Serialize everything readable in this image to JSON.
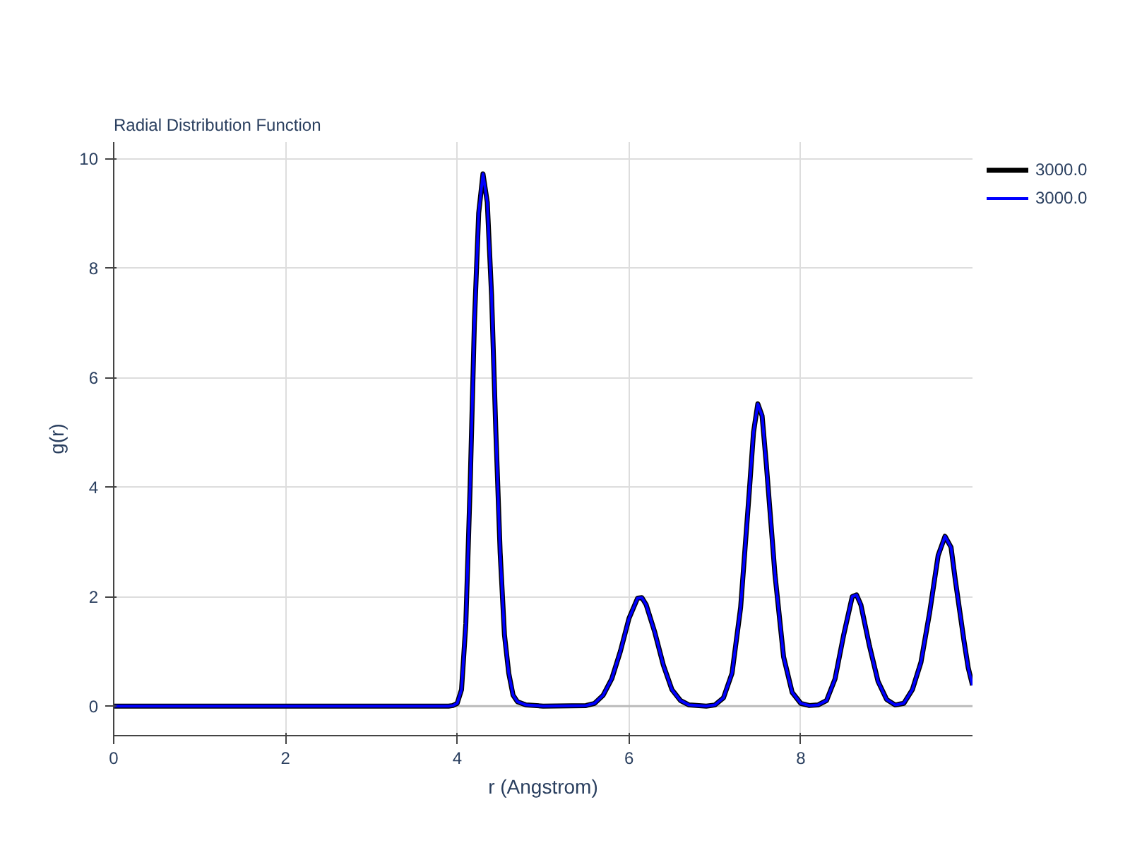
{
  "chart_data": {
    "type": "line",
    "title": "Radial Distribution Function",
    "xlabel": "r (Angstrom)",
    "ylabel": "g(r)",
    "x": [
      0,
      1,
      2,
      3,
      3.9,
      3.95,
      4.0,
      4.05,
      4.1,
      4.15,
      4.2,
      4.25,
      4.3,
      4.35,
      4.4,
      4.45,
      4.5,
      4.55,
      4.6,
      4.65,
      4.7,
      4.8,
      5.0,
      5.5,
      5.6,
      5.7,
      5.8,
      5.9,
      6.0,
      6.1,
      6.15,
      6.2,
      6.3,
      6.4,
      6.5,
      6.6,
      6.7,
      6.9,
      7.0,
      7.1,
      7.2,
      7.3,
      7.4,
      7.45,
      7.5,
      7.55,
      7.6,
      7.7,
      7.8,
      7.9,
      8.0,
      8.1,
      8.2,
      8.3,
      8.4,
      8.5,
      8.6,
      8.65,
      8.7,
      8.8,
      8.9,
      9.0,
      9.1,
      9.2,
      9.3,
      9.4,
      9.5,
      9.6,
      9.68,
      9.75,
      9.8,
      9.9,
      9.95,
      10.0
    ],
    "series": [
      {
        "name": "3000.0",
        "color": "#000000",
        "values": [
          0,
          0,
          0,
          0,
          0,
          0.01,
          0.05,
          0.3,
          1.5,
          4,
          7,
          9,
          9.72,
          9.2,
          7.5,
          5,
          2.8,
          1.3,
          0.6,
          0.2,
          0.08,
          0.02,
          0,
          0.01,
          0.05,
          0.2,
          0.5,
          1.0,
          1.6,
          1.97,
          1.98,
          1.85,
          1.35,
          0.75,
          0.3,
          0.1,
          0.02,
          0,
          0.02,
          0.15,
          0.6,
          1.8,
          3.9,
          5.0,
          5.52,
          5.3,
          4.4,
          2.4,
          0.9,
          0.25,
          0.05,
          0.01,
          0.02,
          0.1,
          0.5,
          1.3,
          2.0,
          2.03,
          1.85,
          1.1,
          0.45,
          0.12,
          0.02,
          0.05,
          0.3,
          0.8,
          1.7,
          2.75,
          3.1,
          2.9,
          2.3,
          1.2,
          0.7,
          0.38
        ]
      },
      {
        "name": "3000.0",
        "color": "#0000ff",
        "values": [
          0,
          0,
          0,
          0,
          0,
          0.01,
          0.05,
          0.3,
          1.5,
          4,
          7,
          9,
          9.72,
          9.2,
          7.5,
          5,
          2.8,
          1.3,
          0.6,
          0.2,
          0.08,
          0.02,
          0,
          0.01,
          0.05,
          0.2,
          0.5,
          1.0,
          1.6,
          1.97,
          1.98,
          1.85,
          1.35,
          0.75,
          0.3,
          0.1,
          0.02,
          0,
          0.02,
          0.15,
          0.6,
          1.8,
          3.9,
          5.0,
          5.52,
          5.3,
          4.4,
          2.4,
          0.9,
          0.25,
          0.05,
          0.01,
          0.02,
          0.1,
          0.5,
          1.3,
          2.0,
          2.03,
          1.85,
          1.1,
          0.45,
          0.12,
          0.02,
          0.05,
          0.3,
          0.8,
          1.7,
          2.75,
          3.1,
          2.9,
          2.3,
          1.2,
          0.7,
          0.38
        ]
      }
    ],
    "xlim": [
      0,
      10
    ],
    "xticks": [
      0,
      2,
      4,
      6,
      8
    ],
    "ylim": [
      -0.54,
      10.3
    ],
    "yticks": [
      0,
      2,
      4,
      6,
      8,
      10
    ],
    "grid": true,
    "legend": "top right",
    "marker": "none",
    "line_style": "solid"
  }
}
